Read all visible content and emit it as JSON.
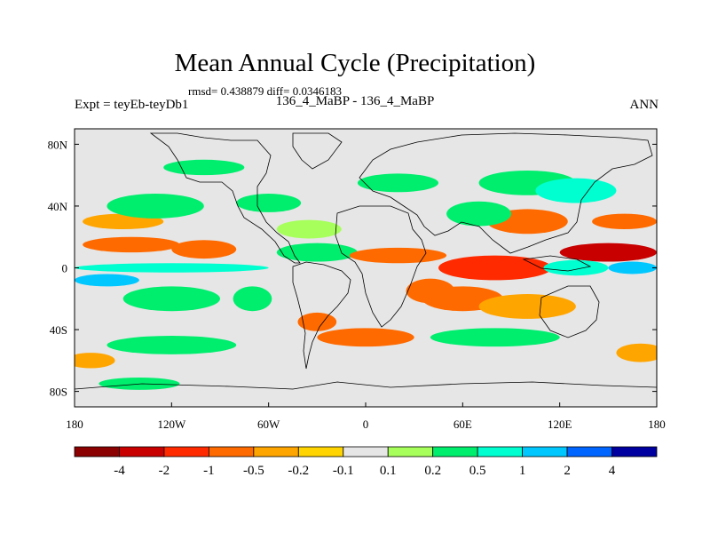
{
  "title": "Mean Annual Cycle (Precipitation)",
  "stats_text": "rmsd= 0.438879 diff= 0.0346183",
  "experiment_label": "Expt = teyEb-teyDb1",
  "comparison_label": "136_4_MaBP - 136_4_MaBP",
  "period_label": "ANN",
  "lat_ticks": [
    {
      "label": "80N",
      "lat": 80
    },
    {
      "label": "40N",
      "lat": 40
    },
    {
      "label": "0",
      "lat": 0
    },
    {
      "label": "40S",
      "lat": -40
    },
    {
      "label": "80S",
      "lat": -80
    }
  ],
  "lon_ticks": [
    {
      "label": "180",
      "lon": -180
    },
    {
      "label": "120W",
      "lon": -120
    },
    {
      "label": "60W",
      "lon": -60
    },
    {
      "label": "0",
      "lon": 0
    },
    {
      "label": "60E",
      "lon": 60
    },
    {
      "label": "120E",
      "lon": 120
    },
    {
      "label": "180",
      "lon": 180
    }
  ],
  "colorbar": {
    "colors": [
      "#8b0000",
      "#c80000",
      "#ff2a00",
      "#ff6a00",
      "#ffa500",
      "#ffd400",
      "#e6e6e6",
      "#a6ff5a",
      "#00ee6e",
      "#00ffd0",
      "#00c8ff",
      "#0064ff",
      "#0000a0"
    ],
    "labels": [
      "-4",
      "-2",
      "-1",
      "-0.5",
      "-0.2",
      "-0.1",
      "0.1",
      "0.2",
      "0.5",
      "1",
      "2",
      "4"
    ]
  },
  "anomaly_regions": [
    {
      "lon": -145,
      "lat": 15,
      "rx": 30,
      "ry": 5,
      "level": 3
    },
    {
      "lon": -100,
      "lat": 12,
      "rx": 20,
      "ry": 6,
      "level": 3
    },
    {
      "lon": -150,
      "lat": 30,
      "rx": 25,
      "ry": 5,
      "level": 4
    },
    {
      "lon": -120,
      "lat": 0,
      "rx": 60,
      "ry": 3,
      "level": 9
    },
    {
      "lon": -160,
      "lat": -8,
      "rx": 20,
      "ry": 4,
      "level": 10
    },
    {
      "lon": -120,
      "lat": -20,
      "rx": 30,
      "ry": 8,
      "level": 8
    },
    {
      "lon": -70,
      "lat": -20,
      "rx": 12,
      "ry": 8,
      "level": 8
    },
    {
      "lon": -30,
      "lat": 10,
      "rx": 25,
      "ry": 6,
      "level": 8
    },
    {
      "lon": -35,
      "lat": 25,
      "rx": 20,
      "ry": 6,
      "level": 7
    },
    {
      "lon": -130,
      "lat": 40,
      "rx": 30,
      "ry": 8,
      "level": 8
    },
    {
      "lon": -60,
      "lat": 42,
      "rx": 20,
      "ry": 6,
      "level": 8
    },
    {
      "lon": 20,
      "lat": 8,
      "rx": 30,
      "ry": 5,
      "level": 3
    },
    {
      "lon": 40,
      "lat": -15,
      "rx": 15,
      "ry": 8,
      "level": 3
    },
    {
      "lon": 80,
      "lat": 0,
      "rx": 35,
      "ry": 8,
      "level": 2
    },
    {
      "lon": 60,
      "lat": -20,
      "rx": 25,
      "ry": 8,
      "level": 3
    },
    {
      "lon": 100,
      "lat": -25,
      "rx": 30,
      "ry": 8,
      "level": 4
    },
    {
      "lon": 150,
      "lat": 10,
      "rx": 30,
      "ry": 6,
      "level": 1
    },
    {
      "lon": 160,
      "lat": 30,
      "rx": 20,
      "ry": 5,
      "level": 3
    },
    {
      "lon": 130,
      "lat": 0,
      "rx": 20,
      "ry": 5,
      "level": 9
    },
    {
      "lon": 165,
      "lat": 0,
      "rx": 15,
      "ry": 4,
      "level": 10
    },
    {
      "lon": 100,
      "lat": 30,
      "rx": 25,
      "ry": 8,
      "level": 3
    },
    {
      "lon": 70,
      "lat": 35,
      "rx": 20,
      "ry": 8,
      "level": 8
    },
    {
      "lon": 100,
      "lat": 55,
      "rx": 30,
      "ry": 8,
      "level": 8
    },
    {
      "lon": 130,
      "lat": 50,
      "rx": 25,
      "ry": 8,
      "level": 9
    },
    {
      "lon": 20,
      "lat": 55,
      "rx": 25,
      "ry": 6,
      "level": 8
    },
    {
      "lon": -100,
      "lat": 65,
      "rx": 25,
      "ry": 5,
      "level": 8
    },
    {
      "lon": -120,
      "lat": -50,
      "rx": 40,
      "ry": 6,
      "level": 8
    },
    {
      "lon": 0,
      "lat": -45,
      "rx": 30,
      "ry": 6,
      "level": 3
    },
    {
      "lon": 80,
      "lat": -45,
      "rx": 40,
      "ry": 6,
      "level": 8
    },
    {
      "lon": -170,
      "lat": -60,
      "rx": 15,
      "ry": 5,
      "level": 4
    },
    {
      "lon": 170,
      "lat": -55,
      "rx": 15,
      "ry": 6,
      "level": 4
    },
    {
      "lon": -140,
      "lat": -75,
      "rx": 25,
      "ry": 4,
      "level": 8
    },
    {
      "lon": -30,
      "lat": -35,
      "rx": 12,
      "ry": 6,
      "level": 3
    }
  ]
}
